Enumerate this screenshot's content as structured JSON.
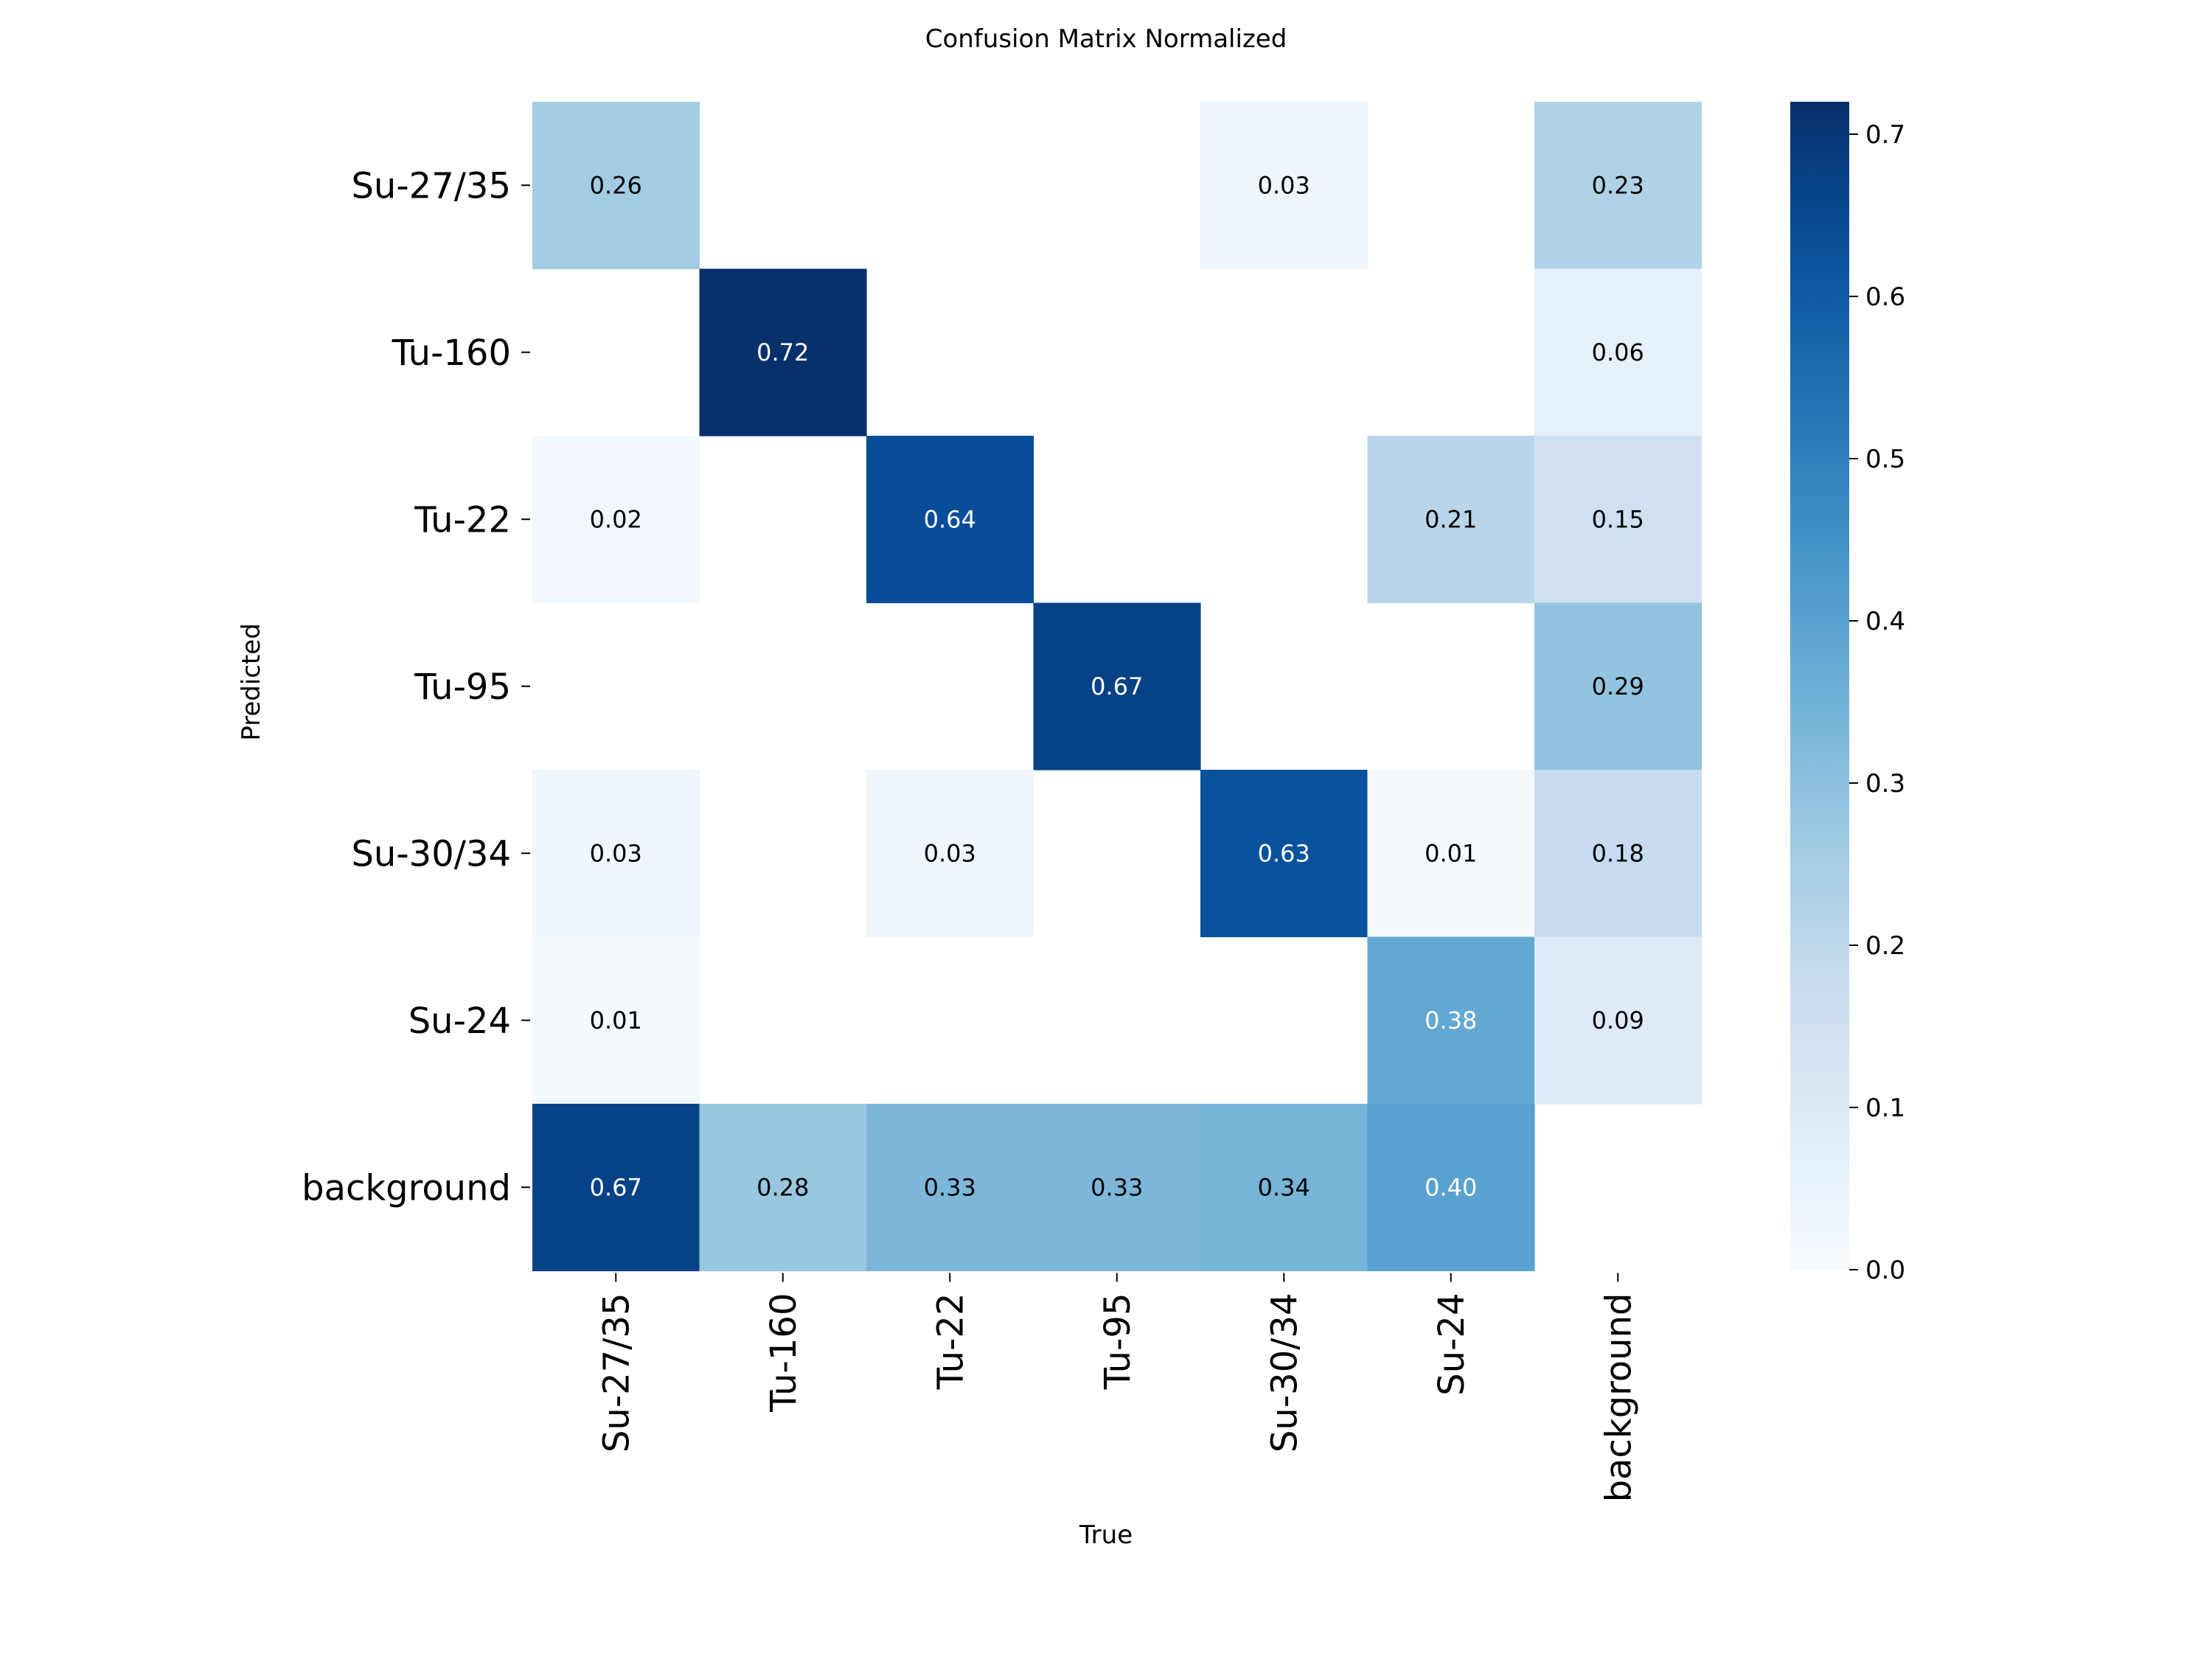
{
  "chart_data": {
    "type": "heatmap",
    "title": "Confusion Matrix Normalized",
    "xlabel": "True",
    "ylabel": "Predicted",
    "x_categories": [
      "Su-27/35",
      "Tu-160",
      "Tu-22",
      "Tu-95",
      "Su-30/34",
      "Su-24",
      "background"
    ],
    "y_categories": [
      "Su-27/35",
      "Tu-160",
      "Tu-22",
      "Tu-95",
      "Su-30/34",
      "Su-24",
      "background"
    ],
    "values": [
      [
        0.26,
        null,
        null,
        null,
        0.03,
        null,
        0.23
      ],
      [
        null,
        0.72,
        null,
        null,
        null,
        null,
        0.06
      ],
      [
        0.02,
        null,
        0.64,
        null,
        null,
        0.21,
        0.15
      ],
      [
        null,
        null,
        null,
        0.67,
        null,
        null,
        0.29
      ],
      [
        0.03,
        null,
        0.03,
        null,
        0.63,
        0.01,
        0.18
      ],
      [
        0.01,
        null,
        null,
        null,
        null,
        0.38,
        0.09
      ],
      [
        0.67,
        0.28,
        0.33,
        0.33,
        0.34,
        0.4,
        null
      ]
    ],
    "value_labels": [
      [
        "0.26",
        "",
        "",
        "",
        "0.03",
        "",
        "0.23"
      ],
      [
        "",
        "0.72",
        "",
        "",
        "",
        "",
        "0.06"
      ],
      [
        "0.02",
        "",
        "0.64",
        "",
        "",
        "0.21",
        "0.15"
      ],
      [
        "",
        "",
        "",
        "0.67",
        "",
        "",
        "0.29"
      ],
      [
        "0.03",
        "",
        "0.03",
        "",
        "0.63",
        "0.01",
        "0.18"
      ],
      [
        "0.01",
        "",
        "",
        "",
        "",
        "0.38",
        "0.09"
      ],
      [
        "0.67",
        "0.28",
        "0.33",
        "0.33",
        "0.34",
        "0.40",
        ""
      ]
    ],
    "colorbar": {
      "colormap": "Blues",
      "vmin": 0.0,
      "vmax": 0.72,
      "ticks": [
        0.0,
        0.1,
        0.2,
        0.3,
        0.4,
        0.5,
        0.6,
        0.7
      ],
      "tick_labels": [
        "0.0",
        "0.1",
        "0.2",
        "0.3",
        "0.4",
        "0.5",
        "0.6",
        "0.7"
      ]
    },
    "grid": false,
    "legend": "right"
  }
}
